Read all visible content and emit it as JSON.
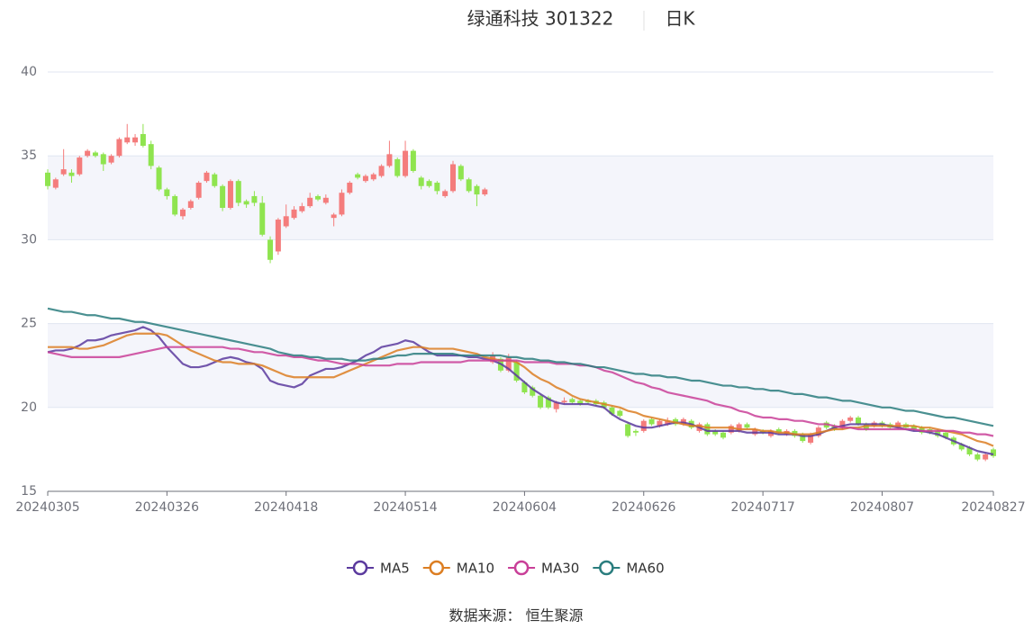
{
  "chart_data": {
    "type": "candlestick",
    "title": "绿通科技 301322",
    "period": "日K",
    "source": "数据来源： 恒生聚源",
    "up_color": "#f47c7c",
    "down_color": "#8fe44f",
    "grid": true,
    "ylim": [
      15,
      40
    ],
    "yticks": [
      15,
      20,
      25,
      30,
      35,
      40
    ],
    "categories": [
      "20240305",
      null,
      null,
      null,
      null,
      null,
      null,
      null,
      null,
      null,
      null,
      null,
      null,
      null,
      null,
      "20240326",
      null,
      null,
      null,
      null,
      null,
      null,
      null,
      null,
      null,
      null,
      null,
      null,
      null,
      null,
      "20240418",
      null,
      null,
      null,
      null,
      null,
      null,
      null,
      null,
      null,
      null,
      null,
      null,
      null,
      null,
      "20240514",
      null,
      null,
      null,
      null,
      null,
      null,
      null,
      null,
      null,
      null,
      null,
      null,
      null,
      null,
      "20240604",
      null,
      null,
      null,
      null,
      null,
      null,
      null,
      null,
      null,
      null,
      null,
      null,
      null,
      null,
      "20240626",
      null,
      null,
      null,
      null,
      null,
      null,
      null,
      null,
      null,
      null,
      null,
      null,
      null,
      null,
      "20240717",
      null,
      null,
      null,
      null,
      null,
      null,
      null,
      null,
      null,
      null,
      null,
      null,
      null,
      null,
      "20240807",
      null,
      null,
      null,
      null,
      null,
      null,
      null,
      null,
      null,
      null,
      null,
      null,
      null,
      "20240827"
    ],
    "open": [
      34.0,
      33.1,
      33.9,
      34.0,
      33.9,
      35.0,
      35.2,
      35.1,
      34.6,
      35.0,
      35.8,
      35.8,
      36.3,
      35.7,
      34.3,
      33.0,
      32.6,
      31.4,
      31.9,
      32.5,
      33.5,
      33.9,
      33.2,
      31.9,
      33.5,
      32.3,
      32.6,
      32.2,
      30.0,
      29.3,
      30.8,
      31.3,
      31.7,
      32.0,
      32.6,
      32.2,
      31.3,
      31.5,
      32.8,
      33.9,
      33.5,
      33.6,
      33.8,
      34.4,
      34.8,
      33.8,
      35.3,
      33.7,
      33.5,
      33.4,
      32.6,
      32.9,
      34.4,
      33.6,
      33.2,
      32.7,
      22.7,
      22.9,
      22.2,
      22.7,
      21.5,
      21.2,
      20.7,
      20.6,
      19.9,
      20.3,
      20.5,
      20.4,
      20.4,
      20.4,
      20.3,
      20.0,
      19.8,
      19.0,
      18.6,
      18.6,
      19.3,
      18.9,
      19.0,
      19.3,
      19.0,
      19.2,
      18.6,
      19.0,
      18.6,
      18.5,
      18.5,
      18.6,
      19.0,
      18.4,
      18.6,
      18.3,
      18.7,
      18.4,
      18.6,
      18.4,
      17.9,
      18.3,
      19.1,
      18.9,
      18.8,
      19.2,
      19.4,
      19.0,
      18.9,
      19.1,
      19.0,
      18.8,
      19.0,
      18.9,
      18.8,
      18.7,
      18.6,
      18.5,
      18.2,
      17.8,
      17.6,
      17.2,
      16.9,
      17.5
    ],
    "close": [
      33.2,
      33.6,
      34.2,
      33.8,
      34.9,
      35.3,
      35.0,
      34.5,
      35.0,
      36.0,
      36.1,
      36.1,
      35.6,
      34.4,
      33.0,
      32.6,
      31.5,
      31.8,
      32.3,
      33.4,
      34.0,
      33.2,
      31.9,
      33.5,
      32.2,
      32.1,
      32.2,
      30.3,
      28.8,
      31.2,
      31.4,
      31.8,
      32.0,
      32.5,
      32.4,
      32.5,
      31.5,
      32.8,
      33.4,
      33.7,
      33.8,
      33.9,
      34.4,
      35.1,
      33.8,
      35.3,
      34.1,
      33.2,
      33.2,
      32.9,
      32.9,
      34.5,
      33.6,
      32.9,
      32.7,
      33.0,
      23.1,
      22.2,
      23.0,
      21.6,
      20.9,
      20.7,
      20.0,
      20.0,
      20.3,
      20.4,
      20.3,
      20.2,
      20.3,
      20.2,
      20.0,
      19.6,
      19.5,
      18.3,
      18.5,
      19.2,
      19.0,
      19.2,
      19.2,
      19.0,
      19.3,
      18.8,
      19.0,
      18.4,
      18.4,
      18.2,
      18.9,
      19.0,
      18.8,
      18.7,
      18.5,
      18.6,
      18.5,
      18.6,
      18.3,
      18.0,
      18.4,
      18.8,
      18.8,
      18.7,
      19.2,
      19.4,
      19.0,
      18.7,
      19.1,
      18.9,
      18.8,
      19.1,
      18.8,
      18.7,
      18.5,
      18.5,
      18.3,
      18.2,
      17.8,
      17.5,
      17.2,
      16.9,
      17.2,
      17.1
    ],
    "high": [
      34.2,
      33.7,
      35.4,
      34.2,
      35.0,
      35.4,
      35.3,
      35.2,
      35.1,
      36.1,
      36.9,
      36.3,
      36.9,
      35.9,
      34.4,
      33.1,
      32.7,
      31.9,
      32.4,
      33.5,
      34.1,
      34.0,
      33.3,
      33.6,
      33.6,
      32.4,
      32.9,
      32.6,
      30.2,
      31.3,
      32.1,
      32.0,
      32.2,
      32.8,
      32.7,
      32.7,
      31.6,
      33.0,
      33.5,
      34.0,
      33.9,
      34.0,
      34.5,
      35.9,
      34.9,
      35.9,
      35.4,
      33.8,
      33.6,
      33.5,
      33.0,
      34.7,
      34.5,
      33.7,
      33.3,
      33.1,
      23.3,
      23.0,
      23.2,
      22.8,
      21.6,
      21.3,
      20.8,
      20.7,
      20.4,
      20.6,
      20.6,
      20.5,
      20.5,
      20.5,
      20.4,
      20.1,
      19.9,
      19.1,
      18.7,
      19.3,
      19.4,
      19.3,
      19.4,
      19.4,
      19.4,
      19.3,
      19.1,
      19.1,
      18.7,
      18.6,
      19.0,
      19.1,
      19.1,
      18.8,
      18.7,
      18.7,
      18.8,
      18.7,
      18.7,
      18.5,
      18.5,
      18.9,
      19.2,
      19.0,
      19.3,
      19.5,
      19.5,
      19.1,
      19.2,
      19.2,
      19.1,
      19.2,
      19.1,
      19.0,
      18.9,
      18.8,
      18.7,
      18.6,
      18.3,
      17.9,
      17.7,
      17.3,
      17.3,
      17.6
    ],
    "low": [
      33.0,
      33.0,
      33.8,
      33.4,
      33.8,
      34.9,
      34.9,
      34.1,
      34.5,
      34.9,
      35.7,
      35.6,
      35.5,
      34.2,
      32.9,
      32.4,
      31.4,
      31.2,
      31.8,
      32.4,
      33.4,
      33.1,
      31.7,
      31.8,
      32.0,
      31.9,
      32.0,
      30.2,
      28.6,
      29.1,
      30.7,
      31.2,
      31.6,
      31.9,
      32.3,
      32.1,
      30.8,
      31.4,
      32.7,
      33.6,
      33.4,
      33.5,
      33.7,
      34.3,
      33.7,
      33.7,
      34.0,
      33.0,
      33.1,
      32.7,
      32.5,
      32.8,
      33.5,
      32.8,
      32.0,
      32.6,
      22.6,
      22.1,
      22.1,
      21.5,
      20.8,
      20.6,
      19.9,
      19.9,
      19.7,
      20.2,
      20.2,
      20.1,
      20.2,
      20.1,
      19.9,
      19.5,
      19.4,
      18.2,
      18.3,
      18.5,
      18.9,
      18.8,
      18.9,
      18.9,
      18.9,
      18.7,
      18.5,
      18.3,
      18.3,
      18.1,
      18.4,
      18.5,
      18.7,
      18.3,
      18.4,
      18.2,
      18.4,
      18.3,
      18.2,
      17.9,
      17.8,
      18.2,
      18.7,
      18.6,
      18.7,
      19.1,
      18.9,
      18.6,
      18.8,
      18.8,
      18.7,
      18.7,
      18.7,
      18.6,
      18.4,
      18.4,
      18.2,
      18.1,
      17.7,
      17.4,
      17.1,
      16.8,
      16.8,
      17.0
    ],
    "series": [
      {
        "name": "MA5",
        "color": "#5b3a9e",
        "values": [
          23.3,
          23.4,
          23.4,
          23.5,
          23.7,
          24.0,
          24.0,
          24.1,
          24.3,
          24.4,
          24.5,
          24.6,
          24.8,
          24.6,
          24.2,
          23.6,
          23.1,
          22.6,
          22.4,
          22.4,
          22.5,
          22.7,
          22.9,
          23.0,
          22.9,
          22.7,
          22.6,
          22.3,
          21.6,
          21.4,
          21.3,
          21.2,
          21.4,
          21.9,
          22.1,
          22.3,
          22.3,
          22.4,
          22.6,
          22.8,
          23.1,
          23.3,
          23.6,
          23.7,
          23.8,
          24.0,
          23.9,
          23.6,
          23.3,
          23.1,
          23.1,
          23.1,
          23.1,
          23.0,
          23.0,
          22.9,
          22.8,
          22.6,
          22.3,
          21.9,
          21.5,
          21.1,
          20.8,
          20.5,
          20.3,
          20.2,
          20.2,
          20.2,
          20.2,
          20.1,
          20.0,
          19.6,
          19.3,
          19.1,
          18.9,
          18.8,
          18.8,
          18.9,
          19.0,
          19.1,
          19.1,
          19.0,
          18.8,
          18.6,
          18.6,
          18.6,
          18.6,
          18.6,
          18.5,
          18.5,
          18.5,
          18.5,
          18.4,
          18.4,
          18.4,
          18.3,
          18.3,
          18.4,
          18.6,
          18.8,
          18.9,
          19.0,
          19.0,
          19.0,
          19.0,
          19.0,
          18.9,
          18.8,
          18.7,
          18.6,
          18.6,
          18.5,
          18.4,
          18.2,
          18.0,
          17.8,
          17.6,
          17.4,
          17.3,
          17.2
        ]
      },
      {
        "name": "MA10",
        "color": "#dc7e22",
        "values": [
          23.6,
          23.6,
          23.6,
          23.6,
          23.5,
          23.5,
          23.6,
          23.7,
          23.9,
          24.1,
          24.3,
          24.4,
          24.4,
          24.4,
          24.4,
          24.3,
          24.0,
          23.7,
          23.4,
          23.2,
          23.0,
          22.8,
          22.7,
          22.7,
          22.6,
          22.6,
          22.6,
          22.5,
          22.3,
          22.1,
          21.9,
          21.8,
          21.8,
          21.8,
          21.8,
          21.8,
          21.8,
          22.0,
          22.2,
          22.4,
          22.6,
          22.8,
          23.0,
          23.2,
          23.4,
          23.5,
          23.6,
          23.6,
          23.5,
          23.5,
          23.5,
          23.5,
          23.4,
          23.3,
          23.2,
          23.0,
          22.9,
          22.8,
          22.8,
          22.7,
          22.4,
          22.0,
          21.7,
          21.5,
          21.2,
          21.0,
          20.7,
          20.5,
          20.4,
          20.3,
          20.2,
          20.1,
          20.0,
          19.8,
          19.7,
          19.5,
          19.4,
          19.3,
          19.2,
          19.1,
          19.0,
          18.9,
          18.9,
          18.8,
          18.8,
          18.8,
          18.8,
          18.7,
          18.7,
          18.7,
          18.6,
          18.6,
          18.5,
          18.5,
          18.4,
          18.4,
          18.4,
          18.5,
          18.6,
          18.7,
          18.7,
          18.8,
          18.8,
          18.9,
          18.9,
          18.9,
          18.9,
          18.9,
          18.9,
          18.9,
          18.8,
          18.8,
          18.7,
          18.6,
          18.5,
          18.4,
          18.2,
          18.0,
          17.9,
          17.7
        ]
      },
      {
        "name": "MA30",
        "color": "#c93f98",
        "values": [
          23.3,
          23.2,
          23.1,
          23.0,
          23.0,
          23.0,
          23.0,
          23.0,
          23.0,
          23.0,
          23.1,
          23.2,
          23.3,
          23.4,
          23.5,
          23.6,
          23.6,
          23.6,
          23.6,
          23.6,
          23.6,
          23.6,
          23.6,
          23.5,
          23.5,
          23.4,
          23.3,
          23.3,
          23.2,
          23.1,
          23.1,
          23.0,
          23.0,
          22.9,
          22.8,
          22.8,
          22.7,
          22.6,
          22.6,
          22.6,
          22.5,
          22.5,
          22.5,
          22.5,
          22.6,
          22.6,
          22.6,
          22.7,
          22.7,
          22.7,
          22.7,
          22.7,
          22.7,
          22.8,
          22.8,
          22.8,
          22.8,
          22.8,
          22.8,
          22.8,
          22.7,
          22.7,
          22.7,
          22.7,
          22.6,
          22.6,
          22.6,
          22.5,
          22.5,
          22.4,
          22.2,
          22.1,
          21.9,
          21.7,
          21.5,
          21.4,
          21.2,
          21.1,
          20.9,
          20.8,
          20.7,
          20.6,
          20.5,
          20.4,
          20.2,
          20.1,
          20.0,
          19.8,
          19.7,
          19.5,
          19.4,
          19.4,
          19.3,
          19.3,
          19.2,
          19.2,
          19.1,
          19.0,
          19.0,
          18.9,
          18.8,
          18.8,
          18.7,
          18.7,
          18.7,
          18.7,
          18.7,
          18.7,
          18.7,
          18.7,
          18.6,
          18.6,
          18.6,
          18.6,
          18.6,
          18.5,
          18.5,
          18.4,
          18.4,
          18.3
        ]
      },
      {
        "name": "MA60",
        "color": "#2a7d7e",
        "values": [
          25.9,
          25.8,
          25.7,
          25.7,
          25.6,
          25.5,
          25.5,
          25.4,
          25.3,
          25.3,
          25.2,
          25.1,
          25.1,
          25.0,
          24.9,
          24.8,
          24.7,
          24.6,
          24.5,
          24.4,
          24.3,
          24.2,
          24.1,
          24.0,
          23.9,
          23.8,
          23.7,
          23.6,
          23.5,
          23.3,
          23.2,
          23.1,
          23.1,
          23.0,
          23.0,
          22.9,
          22.9,
          22.9,
          22.8,
          22.8,
          22.8,
          22.9,
          22.9,
          23.0,
          23.1,
          23.1,
          23.2,
          23.2,
          23.2,
          23.2,
          23.2,
          23.2,
          23.1,
          23.1,
          23.1,
          23.1,
          23.1,
          23.1,
          23.0,
          23.0,
          22.9,
          22.9,
          22.8,
          22.8,
          22.7,
          22.7,
          22.6,
          22.6,
          22.5,
          22.4,
          22.4,
          22.3,
          22.2,
          22.1,
          22.0,
          22.0,
          21.9,
          21.9,
          21.8,
          21.8,
          21.7,
          21.6,
          21.6,
          21.5,
          21.4,
          21.3,
          21.3,
          21.2,
          21.2,
          21.1,
          21.1,
          21.0,
          21.0,
          20.9,
          20.8,
          20.8,
          20.7,
          20.6,
          20.6,
          20.5,
          20.4,
          20.4,
          20.3,
          20.2,
          20.1,
          20.0,
          20.0,
          19.9,
          19.8,
          19.8,
          19.7,
          19.6,
          19.5,
          19.4,
          19.4,
          19.3,
          19.2,
          19.1,
          19.0,
          18.9
        ]
      }
    ]
  }
}
